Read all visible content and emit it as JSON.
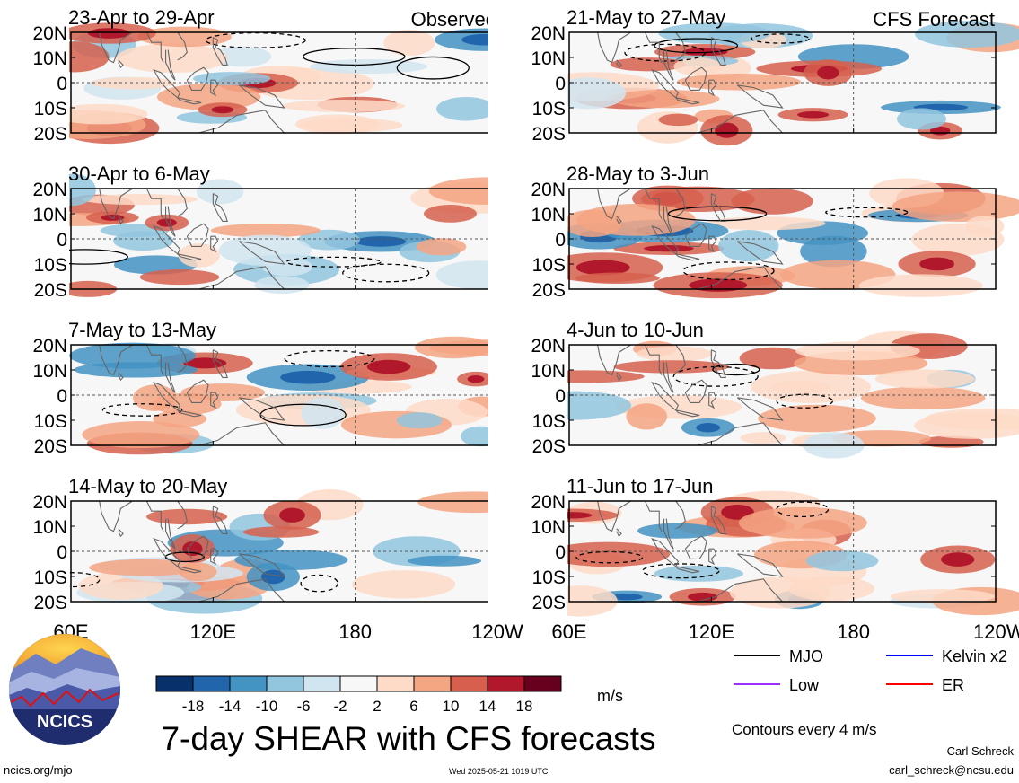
{
  "chart_data": {
    "type": "heatmap",
    "title": "7-day SHEAR with CFS forecasts",
    "variable_unit": "m/s",
    "x_axis": {
      "range_deg_east": [
        60,
        240
      ],
      "ticks": [
        "60E",
        "120E",
        "180",
        "120W"
      ]
    },
    "y_axis": {
      "range_deg": [
        -20,
        20
      ],
      "ticks": [
        "20N",
        "10N",
        "0",
        "10S",
        "20S"
      ]
    },
    "columns": [
      {
        "label": "Observed",
        "panels": [
          {
            "period": "23-Apr to 29-Apr"
          },
          {
            "period": "30-Apr to 6-May"
          },
          {
            "period": "7-May to 13-May"
          },
          {
            "period": "14-May to 20-May"
          }
        ]
      },
      {
        "label": "CFS Forecast",
        "panels": [
          {
            "period": "21-May to 27-May"
          },
          {
            "period": "28-May to 3-Jun"
          },
          {
            "period": "4-Jun to 10-Jun"
          },
          {
            "period": "11-Jun to 17-Jun"
          }
        ]
      }
    ],
    "colorbar": {
      "labels": [
        "-18",
        "-14",
        "-10",
        "-6",
        "-2",
        "2",
        "6",
        "10",
        "14",
        "18"
      ],
      "colors": [
        "#08306b",
        "#2166ac",
        "#4393c3",
        "#92c5de",
        "#d1e5f0",
        "#f7f7f7",
        "#fddbc7",
        "#f4a582",
        "#d6604d",
        "#b2182b",
        "#67001f"
      ],
      "unit": "m/s"
    },
    "legend": [
      {
        "label": "MJO",
        "color": "#000000"
      },
      {
        "label": "Kelvin x2",
        "color": "#0000ff"
      },
      {
        "label": "Low",
        "color": "#9b30ff"
      },
      {
        "label": "ER",
        "color": "#ff0000"
      }
    ],
    "contour_note": "Contours every 4 m/s"
  },
  "branding": {
    "logo_text": "NCICS",
    "site": "ncics.org/mjo",
    "timestamp": "Wed 2025-05-21 1019 UTC",
    "author": "Carl Schreck",
    "email": "carl_schreck@ncsu.edu"
  }
}
